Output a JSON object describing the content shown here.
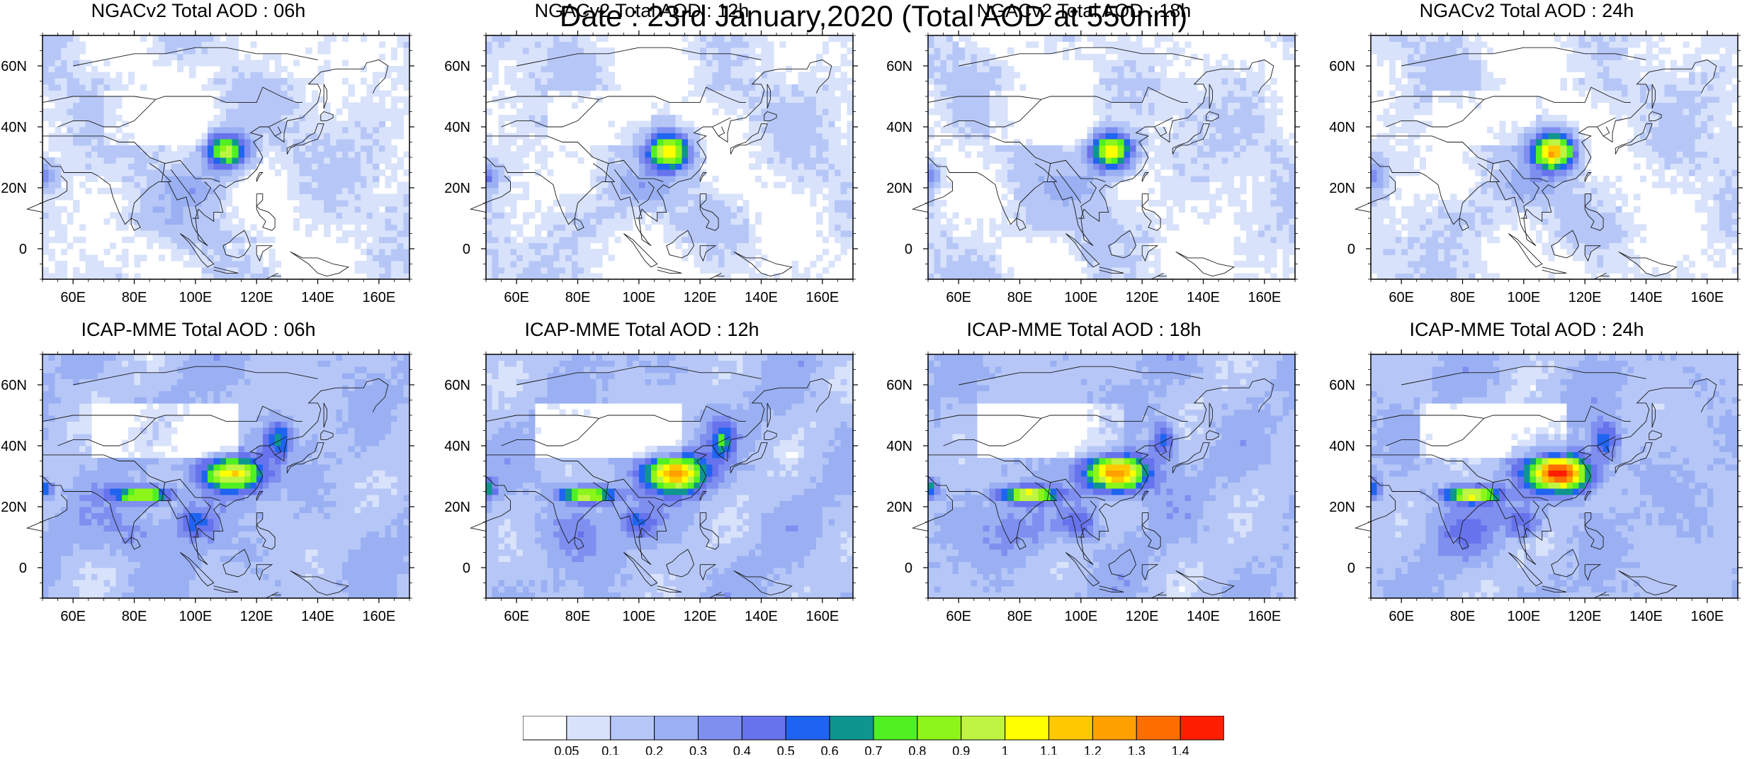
{
  "title": "Date : 23rd January,2020 (Total AOD at 550nm)",
  "panels": [
    {
      "id": "ngac-06",
      "title": "NGACv2 Total AOD : 06h",
      "model": "ngac",
      "hour": 6
    },
    {
      "id": "ngac-12",
      "title": "NGACv2 Total AOD : 12h",
      "model": "ngac",
      "hour": 12
    },
    {
      "id": "ngac-18",
      "title": "NGACv2 Total AOD : 18h",
      "model": "ngac",
      "hour": 18
    },
    {
      "id": "ngac-24",
      "title": "NGACv2 Total AOD : 24h",
      "model": "ngac",
      "hour": 24
    },
    {
      "id": "icap-06",
      "title": "ICAP-MME Total AOD : 06h",
      "model": "icap",
      "hour": 6
    },
    {
      "id": "icap-12",
      "title": "ICAP-MME Total AOD : 12h",
      "model": "icap",
      "hour": 12
    },
    {
      "id": "icap-18",
      "title": "ICAP-MME Total AOD : 18h",
      "model": "icap",
      "hour": 18
    },
    {
      "id": "icap-24",
      "title": "ICAP-MME Total AOD : 24h",
      "model": "icap",
      "hour": 24
    }
  ],
  "map_extent": {
    "lon": [
      50,
      170
    ],
    "lat": [
      -10,
      70
    ]
  },
  "lon_ticks": [
    {
      "value": 60,
      "label": "60E"
    },
    {
      "value": 80,
      "label": "80E"
    },
    {
      "value": 100,
      "label": "100E"
    },
    {
      "value": 120,
      "label": "120E"
    },
    {
      "value": 140,
      "label": "140E"
    },
    {
      "value": 160,
      "label": "160E"
    }
  ],
  "lat_ticks": [
    {
      "value": 60,
      "label": "60N"
    },
    {
      "value": 40,
      "label": "40N"
    },
    {
      "value": 20,
      "label": "20N"
    },
    {
      "value": 0,
      "label": "0"
    }
  ],
  "colorbar": {
    "labels": [
      "0.05",
      "0.1",
      "0.2",
      "0.3",
      "0.4",
      "0.5",
      "0.6",
      "0.7",
      "0.8",
      "0.9",
      "1",
      "1.1",
      "1.2",
      "1.3",
      "1.4"
    ],
    "colors": [
      "#ffffff",
      "#d8e2fb",
      "#b6c7f7",
      "#9ab0f3",
      "#7f8ff0",
      "#6673ec",
      "#1f64f0",
      "#0f9590",
      "#50f022",
      "#8cf519",
      "#bff542",
      "#ffff00",
      "#ffc800",
      "#ffa000",
      "#ff6e00",
      "#ff1e00"
    ]
  }
}
